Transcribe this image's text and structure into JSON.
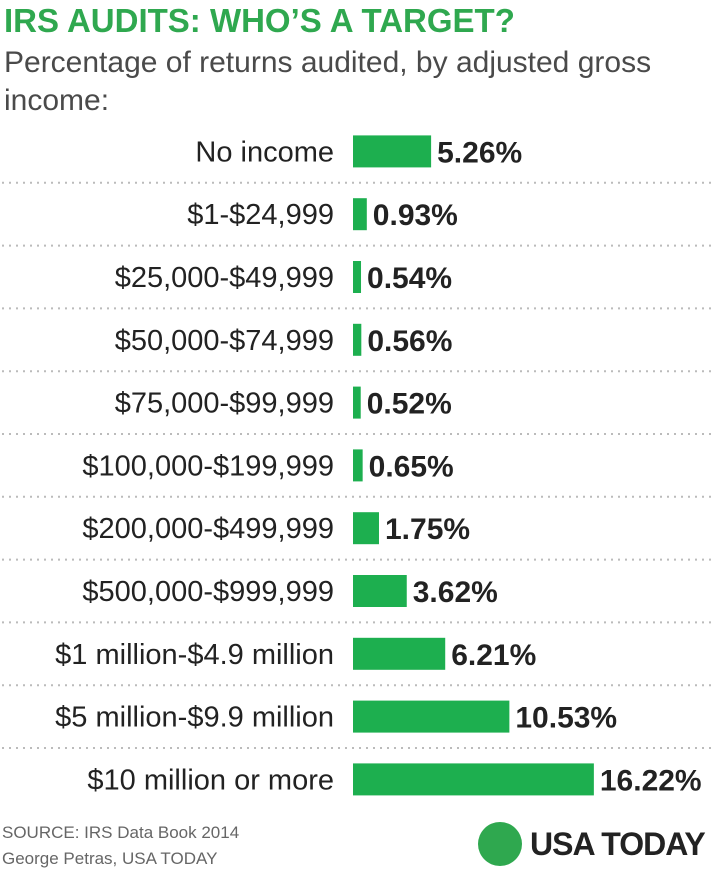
{
  "title": "IRS AUDITS: WHO’S A TARGET?",
  "subtitle": "Percentage of returns audited, by adjusted gross income:",
  "colors": {
    "bar": "#1daf4f",
    "title": "#2fa84f",
    "text": "#222222",
    "divider": "#bbbbbb"
  },
  "chart_data": {
    "type": "bar",
    "orientation": "horizontal",
    "categories": [
      "No income",
      "$1-$24,999",
      "$25,000-$49,999",
      "$50,000-$74,999",
      "$75,000-$99,999",
      "$100,000-$199,999",
      "$200,000-$499,999",
      "$500,000-$999,999",
      "$1 million-$4.9 million",
      "$5 million-$9.9 million",
      "$10 million or more"
    ],
    "values": [
      5.26,
      0.93,
      0.54,
      0.56,
      0.52,
      0.65,
      1.75,
      3.62,
      6.21,
      10.53,
      16.22
    ],
    "value_labels": [
      "5.26%",
      "0.93%",
      "0.54%",
      "0.56%",
      "0.52%",
      "0.65%",
      "1.75%",
      "3.62%",
      "6.21%",
      "10.53%",
      "16.22%"
    ],
    "unit": "%",
    "grid": false
  },
  "footer": {
    "source": "SOURCE:  IRS Data Book 2014",
    "credit": "George Petras, USA TODAY",
    "logo_text": "USA TODAY"
  }
}
